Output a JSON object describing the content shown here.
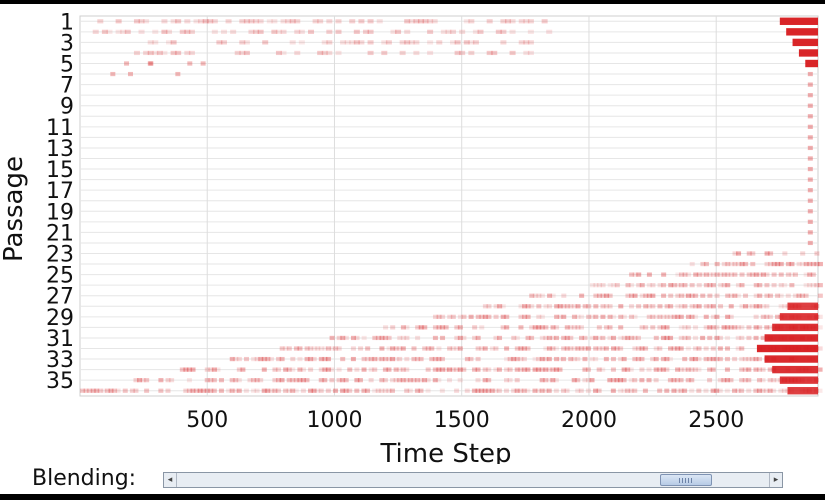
{
  "chart_data": {
    "type": "heatmap",
    "xlabel": "Time Step",
    "ylabel": "Passage",
    "x_ticks": [
      500,
      1000,
      1500,
      2000,
      2500
    ],
    "xlim": [
      0,
      2900
    ],
    "y_ticks": [
      "1",
      "3",
      "5",
      "7",
      "9",
      "11",
      "13",
      "15",
      "17",
      "19",
      "21",
      "23",
      "25",
      "27",
      "29",
      "31",
      "33",
      "35"
    ],
    "y_range": [
      1,
      36
    ],
    "grid": true,
    "color": "#d7191c",
    "regions": [
      {
        "passages": [
          1,
          4
        ],
        "x": [
          50,
          1850
        ],
        "intensity": 0.25
      },
      {
        "passages": [
          1,
          5
        ],
        "x": [
          2750,
          2900
        ],
        "intensity": 0.95
      },
      {
        "passages": [
          23,
          36
        ],
        "x": [
          0,
          2900
        ],
        "intensity": 0.3
      },
      {
        "passages": [
          28,
          36
        ],
        "x": [
          2600,
          2900
        ],
        "intensity": 0.95
      }
    ]
  },
  "controls": {
    "blending_label": "Blending:",
    "slider_value": 0.89,
    "left_arrow": "◂",
    "right_arrow": "▸",
    "slider_color": "#b7cbe6"
  }
}
